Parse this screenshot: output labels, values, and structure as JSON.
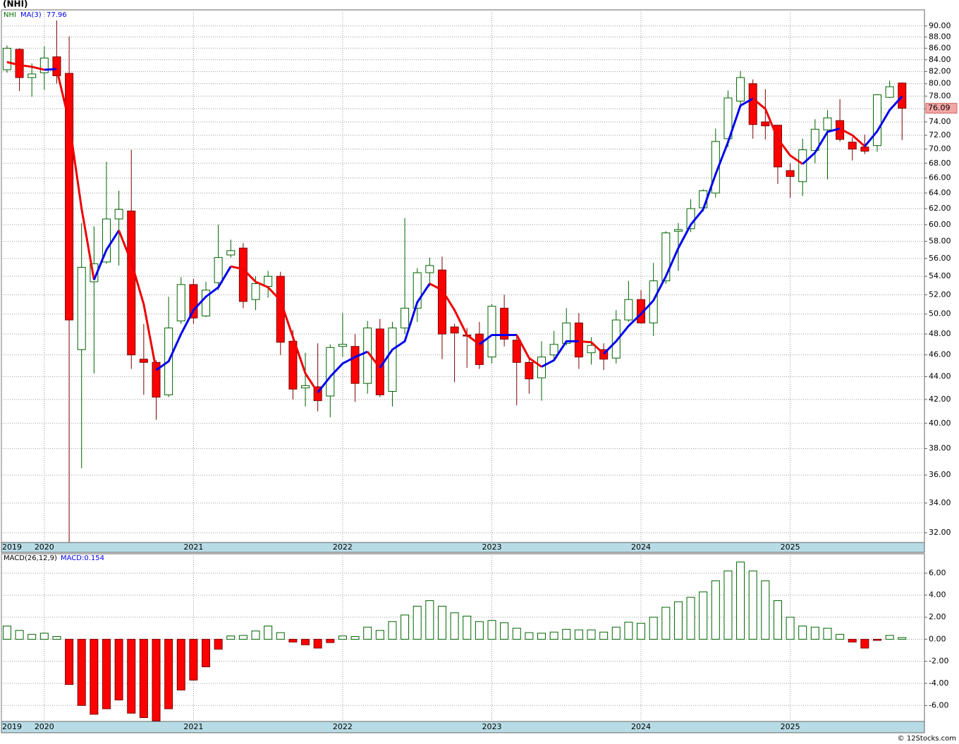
{
  "chart_data": [
    {
      "type": "candlestick",
      "title": "(NHI)",
      "symbol": "NHI",
      "open": [
        82.3,
        85.8,
        81.0,
        81.8,
        84.5,
        81.7,
        46.5,
        53.4,
        55.6,
        60.7,
        61.7,
        45.6,
        45.3,
        42.4,
        49.3,
        53.1,
        49.8,
        53.3,
        56.4,
        57.2,
        51.5,
        52.9,
        54.0,
        47.3,
        43.0,
        43.1,
        42.3,
        46.8,
        46.8,
        43.4,
        48.5,
        42.7,
        48.6,
        50.6,
        54.4,
        54.7,
        48.7,
        47.9,
        48.0,
        45.8,
        50.6,
        47.4,
        45.3,
        43.9,
        46.0,
        47.1,
        49.1,
        46.2,
        46.5,
        45.7,
        49.4,
        51.5,
        49.1,
        53.5,
        59.2,
        59.5,
        62.1,
        64.0,
        71.5,
        77.2,
        80.0,
        74.0,
        73.5,
        67.0,
        65.5,
        69.8,
        72.8,
        74.2,
        71.0,
        70.3,
        70.5,
        77.8,
        80.1
      ],
      "high": [
        86.5,
        86.0,
        83.4,
        86.3,
        91.0,
        88.1,
        60.2,
        59.8,
        68.2,
        64.3,
        69.9,
        49.0,
        45.5,
        51.8,
        53.9,
        53.7,
        53.4,
        60.0,
        58.2,
        57.8,
        54.0,
        54.6,
        54.5,
        48.4,
        46.2,
        47.1,
        47.0,
        50.1,
        48.0,
        49.3,
        49.5,
        49.2,
        60.8,
        54.9,
        56.1,
        56.2,
        49.0,
        48.6,
        49.2,
        51.0,
        52.0,
        48.0,
        45.8,
        47.3,
        48.3,
        50.6,
        50.1,
        47.7,
        47.1,
        50.4,
        53.5,
        52.5,
        55.5,
        59.2,
        60.2,
        63.2,
        64.5,
        73.0,
        78.9,
        82.1,
        80.7,
        79.1,
        73.5,
        68.0,
        71.5,
        74.4,
        75.8,
        77.5,
        71.7,
        72.1,
        78.3,
        80.5,
        80.2
      ],
      "low": [
        81.8,
        78.8,
        77.9,
        79.0,
        80.0,
        31.4,
        36.5,
        44.3,
        55.4,
        55.2,
        44.7,
        42.4,
        40.3,
        42.2,
        49.0,
        49.0,
        49.7,
        52.5,
        56.1,
        50.6,
        50.4,
        51.7,
        46.0,
        42.0,
        41.4,
        41.0,
        40.5,
        45.8,
        41.8,
        42.5,
        42.2,
        41.4,
        48.0,
        49.2,
        52.9,
        45.6,
        43.5,
        44.8,
        44.7,
        45.2,
        46.8,
        41.5,
        42.5,
        41.9,
        45.4,
        46.9,
        44.7,
        45.1,
        44.6,
        45.2,
        49.2,
        49.0,
        47.8,
        53.2,
        54.6,
        59.1,
        61.6,
        63.4,
        70.3,
        76.7,
        71.5,
        71.4,
        65.2,
        63.4,
        63.6,
        68.0,
        65.8,
        71.1,
        68.4,
        69.3,
        69.6,
        77.7,
        71.3
      ],
      "close": [
        86.0,
        81.0,
        81.6,
        84.3,
        81.3,
        49.4,
        55.0,
        55.4,
        60.7,
        61.9,
        46.0,
        45.3,
        42.2,
        48.6,
        53.1,
        49.6,
        52.5,
        56.1,
        56.9,
        51.3,
        53.2,
        54.0,
        47.2,
        42.9,
        43.2,
        41.9,
        46.7,
        47.0,
        43.4,
        48.6,
        42.4,
        48.6,
        50.6,
        54.4,
        55.2,
        48.0,
        48.1,
        47.8,
        45.1,
        50.8,
        47.5,
        45.3,
        43.8,
        45.8,
        47.0,
        49.1,
        45.8,
        46.9,
        45.6,
        49.4,
        51.5,
        49.1,
        53.5,
        59.0,
        59.4,
        62.0,
        64.3,
        71.1,
        77.7,
        81.0,
        73.6,
        73.4,
        67.5,
        66.2,
        69.9,
        72.9,
        74.6,
        71.4,
        70.0,
        69.7,
        78.2,
        79.5,
        76.09
      ],
      "up_color": "#ffffff",
      "up_edge": "#006400",
      "down_color": "#ff0000",
      "down_edge": "#7a0000",
      "ma": {
        "name": "MA(3)",
        "up_color": "#0000ee",
        "down_color": "#ee0000",
        "values": [
          83.6,
          83.1,
          82.8,
          82.3,
          82.4,
          74.0,
          62.0,
          53.6,
          57.0,
          59.3,
          55.6,
          51.0,
          44.6,
          45.4,
          48.0,
          50.4,
          51.8,
          52.8,
          55.1,
          54.8,
          53.4,
          52.8,
          51.4,
          47.7,
          44.3,
          42.6,
          44.0,
          45.2,
          45.8,
          46.3,
          44.8,
          46.5,
          47.3,
          51.2,
          53.2,
          52.5,
          50.4,
          47.9,
          47.0,
          47.9,
          47.9,
          47.9,
          45.7,
          44.9,
          45.5,
          47.3,
          47.3,
          47.2,
          46.1,
          47.3,
          48.8,
          50.0,
          51.4,
          54.0,
          57.2,
          60.0,
          61.9,
          66.5,
          71.0,
          76.5,
          77.6,
          76.0,
          71.5,
          69.1,
          67.9,
          69.5,
          72.5,
          73.0,
          72.0,
          70.4,
          72.6,
          75.8,
          77.96
        ]
      },
      "log_scale": true,
      "grid": true,
      "ylim": [
        31.37,
        93.0
      ],
      "yticks": [
        {
          "value": 32,
          "label": "32.00"
        },
        {
          "value": 34,
          "label": "34.00"
        },
        {
          "value": 36,
          "label": "36.00"
        },
        {
          "value": 38,
          "label": "38.00"
        },
        {
          "value": 40,
          "label": "40.00"
        },
        {
          "value": 42,
          "label": "42.00"
        },
        {
          "value": 44,
          "label": "44.00"
        },
        {
          "value": 46,
          "label": "46.00"
        },
        {
          "value": 48,
          "label": "48.00"
        },
        {
          "value": 50,
          "label": "50.00"
        },
        {
          "value": 52,
          "label": "52.00"
        },
        {
          "value": 54,
          "label": "54.00"
        },
        {
          "value": 56,
          "label": "56.00"
        },
        {
          "value": 58,
          "label": "58.00"
        },
        {
          "value": 60,
          "label": "60.00"
        },
        {
          "value": 62,
          "label": "62.00"
        },
        {
          "value": 64,
          "label": "64.00"
        },
        {
          "value": 66,
          "label": "66.00"
        },
        {
          "value": 68,
          "label": "68.00"
        },
        {
          "value": 70,
          "label": "70.00"
        },
        {
          "value": 72,
          "label": "72.00"
        },
        {
          "value": 74,
          "label": "74.00"
        },
        {
          "value": 76,
          "label": "76.00"
        },
        {
          "value": 78,
          "label": "78.00"
        },
        {
          "value": 80,
          "label": "80.00"
        },
        {
          "value": 82,
          "label": "82.00"
        },
        {
          "value": 84,
          "label": "84.00"
        },
        {
          "value": 86,
          "label": "86.00"
        },
        {
          "value": 88,
          "label": "88.00"
        },
        {
          "value": 90,
          "label": "90.00"
        }
      ],
      "xlim": [
        -0.45,
        73.8
      ],
      "xticks": [
        {
          "value": -0.45,
          "label": "2019"
        },
        {
          "value": 3,
          "label": "2020"
        },
        {
          "value": 15,
          "label": "2021"
        },
        {
          "value": 27,
          "label": "2022"
        },
        {
          "value": 39,
          "label": "2023"
        },
        {
          "value": 51,
          "label": "2024"
        },
        {
          "value": 63,
          "label": "2025"
        }
      ]
    },
    {
      "type": "macd",
      "name": "MACD(26,12,9)",
      "legend": "MACD:0.154",
      "values": [
        1.2,
        0.8,
        0.45,
        0.55,
        0.25,
        -4.1,
        -6.0,
        -6.8,
        -6.3,
        -5.5,
        -6.7,
        -7.1,
        -7.4,
        -6.3,
        -4.6,
        -3.7,
        -2.5,
        -0.9,
        0.3,
        0.35,
        0.75,
        1.2,
        0.6,
        -0.25,
        -0.5,
        -0.8,
        -0.3,
        0.3,
        0.25,
        1.1,
        0.8,
        1.6,
        2.2,
        3.0,
        3.5,
        3.0,
        2.4,
        2.1,
        1.6,
        1.7,
        1.5,
        1.0,
        0.6,
        0.55,
        0.65,
        0.9,
        0.85,
        0.85,
        0.65,
        1.1,
        1.55,
        1.45,
        2.0,
        2.9,
        3.4,
        3.8,
        4.3,
        5.3,
        6.2,
        7.0,
        6.2,
        5.3,
        3.5,
        2.0,
        1.2,
        1.1,
        1.0,
        0.45,
        -0.25,
        -0.8,
        -0.1,
        0.35,
        0.154
      ],
      "up_color": "#ffffff",
      "up_edge": "#006400",
      "down_color": "#ff0000",
      "down_edge": "#7a0000",
      "grid": true,
      "ylim": [
        -7.45,
        7.75
      ],
      "yticks": [
        {
          "value": -6,
          "label": "-6.00"
        },
        {
          "value": -4,
          "label": "-4.00"
        },
        {
          "value": -2,
          "label": "-2.00"
        },
        {
          "value": 0,
          "label": "0.00"
        },
        {
          "value": 2,
          "label": "2.00"
        },
        {
          "value": 4,
          "label": "4.00"
        },
        {
          "value": 6,
          "label": "6.00"
        }
      ],
      "xlim": [
        -0.45,
        73.8
      ],
      "xticks": [
        {
          "value": -0.45,
          "label": "2019"
        },
        {
          "value": 3,
          "label": "2020"
        },
        {
          "value": 15,
          "label": "2021"
        },
        {
          "value": 27,
          "label": "2022"
        },
        {
          "value": 39,
          "label": "2023"
        },
        {
          "value": 51,
          "label": "2024"
        },
        {
          "value": 63,
          "label": "2025"
        }
      ]
    }
  ],
  "footer": "© 12Stocks.com"
}
